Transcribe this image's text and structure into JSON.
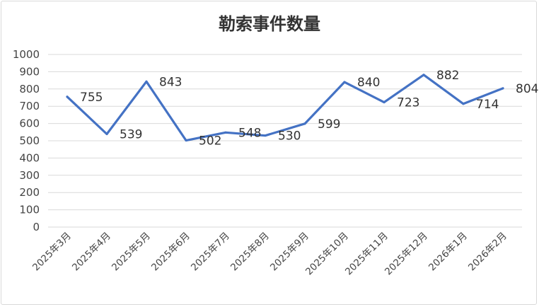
{
  "chart_data": {
    "type": "line",
    "title": "勒索事件数量",
    "categories": [
      "2025年3月",
      "2025年4月",
      "2025年5月",
      "2025年6月",
      "2025年7月",
      "2025年8月",
      "2025年9月",
      "2025年10月",
      "2025年11月",
      "2025年12月",
      "2026年1月",
      "2026年2月"
    ],
    "values": [
      755,
      539,
      843,
      502,
      548,
      530,
      599,
      840,
      723,
      882,
      714,
      804
    ],
    "ylim": [
      0,
      1000
    ],
    "yticks": [
      0,
      100,
      200,
      300,
      400,
      500,
      600,
      700,
      800,
      900,
      1000
    ],
    "grid": true,
    "data_labels": true,
    "line_color": "#4472C4",
    "xlabel": "",
    "ylabel": ""
  }
}
